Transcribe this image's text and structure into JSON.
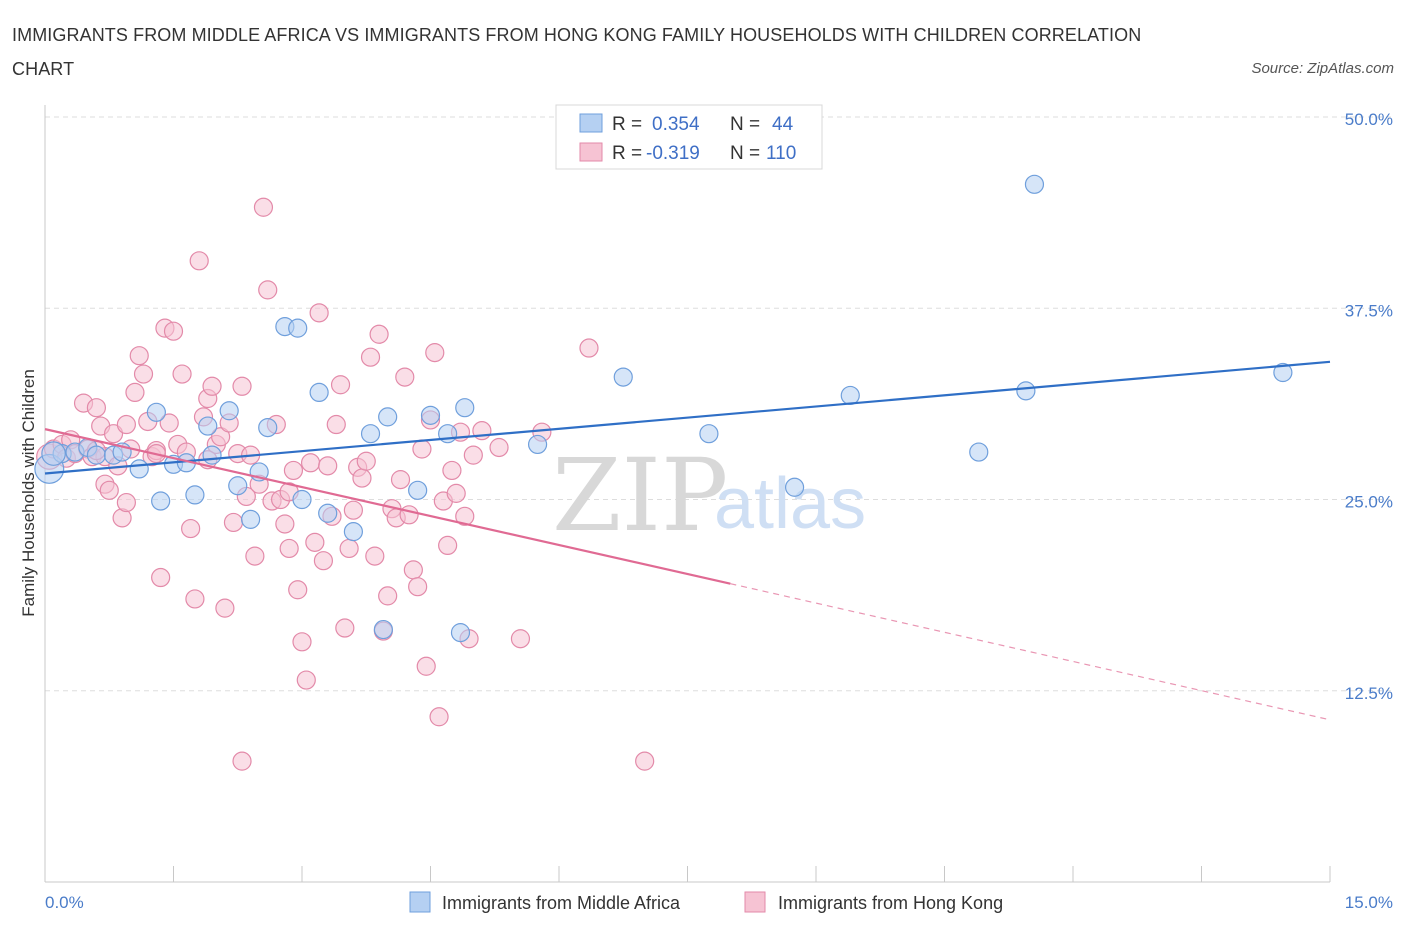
{
  "title_line1": "IMMIGRANTS FROM MIDDLE AFRICA VS IMMIGRANTS FROM HONG KONG FAMILY HOUSEHOLDS WITH CHILDREN CORRELATION",
  "title_line2": "CHART",
  "source": "Source: ZipAtlas.com",
  "watermark": {
    "zip": "ZIP",
    "atlas": "atlas"
  },
  "colors": {
    "blue_fill": "#b5d0f2",
    "blue_stroke": "#6f9fdc",
    "blue_line": "#2f6fc6",
    "pink_fill": "#f6c3d3",
    "pink_stroke": "#e38aa9",
    "pink_line": "#e06a93",
    "grid": "#dddddd",
    "axis_label": "#4a7cc9"
  },
  "stats_legend": {
    "rows": [
      {
        "r_label": "R =",
        "r_value": "0.354",
        "n_label": "N =",
        "n_value": "44",
        "series": "blue"
      },
      {
        "r_label": "R =",
        "r_value": "-0.319",
        "n_label": "N =",
        "n_value": "110",
        "series": "pink"
      }
    ]
  },
  "chart_data": {
    "type": "scatter",
    "title": "IMMIGRANTS FROM MIDDLE AFRICA VS IMMIGRANTS FROM HONG KONG FAMILY HOUSEHOLDS WITH CHILDREN CORRELATION CHART",
    "xlabel": "",
    "ylabel": "Family Households with Children",
    "xlim": [
      0,
      15
    ],
    "ylim": [
      0,
      50
    ],
    "x_tick_labels": {
      "min": "0.0%",
      "max": "15.0%"
    },
    "y_ticks": [
      {
        "value": 50,
        "label": "50.0%"
      },
      {
        "value": 37.5,
        "label": "37.5%"
      },
      {
        "value": 25,
        "label": "25.0%"
      },
      {
        "value": 12.5,
        "label": "12.5%"
      }
    ],
    "x_minor_ticks": [
      0,
      1.5,
      3,
      4.5,
      6,
      7.5,
      9,
      10.5,
      12,
      13.5,
      15
    ],
    "legend": [
      "Immigrants from Middle Africa",
      "Immigrants from Hong Kong"
    ],
    "series": [
      {
        "name": "Immigrants from Middle Africa",
        "color": "blue",
        "R": 0.354,
        "N": 44,
        "trend": {
          "x0": 0,
          "y0": 26.7,
          "x1": 15,
          "y1": 34.0
        },
        "points": [
          [
            0.05,
            27.0,
            1.6
          ],
          [
            0.2,
            28.0,
            1
          ],
          [
            0.35,
            28.1,
            1
          ],
          [
            0.5,
            28.4,
            1
          ],
          [
            0.6,
            27.9,
            1
          ],
          [
            0.8,
            27.9,
            1
          ],
          [
            0.9,
            28.1,
            1
          ],
          [
            1.1,
            27.0,
            1
          ],
          [
            1.3,
            30.7,
            1
          ],
          [
            1.35,
            24.9,
            1
          ],
          [
            1.5,
            27.3,
            1
          ],
          [
            1.65,
            27.4,
            1
          ],
          [
            1.75,
            25.3,
            1
          ],
          [
            1.9,
            29.8,
            1
          ],
          [
            1.95,
            27.9,
            1
          ],
          [
            2.15,
            30.8,
            1
          ],
          [
            2.25,
            25.9,
            1
          ],
          [
            2.4,
            23.7,
            1
          ],
          [
            2.5,
            26.8,
            1
          ],
          [
            2.6,
            29.7,
            1
          ],
          [
            2.8,
            36.3,
            1
          ],
          [
            2.95,
            36.2,
            1
          ],
          [
            3.0,
            25.0,
            1
          ],
          [
            3.2,
            32.0,
            1
          ],
          [
            3.3,
            24.1,
            1
          ],
          [
            3.6,
            22.9,
            1
          ],
          [
            3.8,
            29.3,
            1
          ],
          [
            3.95,
            16.5,
            1
          ],
          [
            4.0,
            30.4,
            1
          ],
          [
            4.35,
            25.6,
            1
          ],
          [
            4.5,
            30.5,
            1
          ],
          [
            4.7,
            29.3,
            1
          ],
          [
            4.85,
            16.3,
            1
          ],
          [
            4.9,
            31.0,
            1
          ],
          [
            5.75,
            28.6,
            1
          ],
          [
            6.75,
            33.0,
            1
          ],
          [
            7.75,
            29.3,
            1
          ],
          [
            8.75,
            25.8,
            1
          ],
          [
            9.4,
            31.8,
            1
          ],
          [
            10.9,
            28.1,
            1
          ],
          [
            11.55,
            45.6,
            1
          ],
          [
            11.45,
            32.1,
            1
          ],
          [
            14.45,
            33.3,
            1
          ],
          [
            0.1,
            28.0,
            1.3
          ]
        ]
      },
      {
        "name": "Immigrants from Hong Kong",
        "color": "pink",
        "R": -0.319,
        "N": 110,
        "trend": {
          "x0": 0,
          "y0": 29.6,
          "x1": 8.0,
          "y1": 19.5
        },
        "trend_dashed": {
          "x0": 8.0,
          "y0": 19.5,
          "x1": 15,
          "y1": 10.6
        },
        "points": [
          [
            0.05,
            27.8,
            1.4
          ],
          [
            0.1,
            28.3,
            1
          ],
          [
            0.2,
            28.6,
            1
          ],
          [
            0.25,
            27.7,
            1
          ],
          [
            0.3,
            28.9,
            1
          ],
          [
            0.35,
            28.0,
            1
          ],
          [
            0.45,
            31.3,
            1
          ],
          [
            0.5,
            28.3,
            1
          ],
          [
            0.55,
            27.8,
            1
          ],
          [
            0.6,
            31.0,
            1
          ],
          [
            0.65,
            29.8,
            1
          ],
          [
            0.7,
            27.8,
            1
          ],
          [
            0.7,
            26.0,
            1
          ],
          [
            0.75,
            25.6,
            1
          ],
          [
            0.8,
            29.3,
            1
          ],
          [
            0.85,
            27.2,
            1
          ],
          [
            0.9,
            23.8,
            1
          ],
          [
            0.95,
            29.9,
            1
          ],
          [
            0.95,
            24.8,
            1
          ],
          [
            1.0,
            28.3,
            1
          ],
          [
            1.05,
            32.0,
            1
          ],
          [
            1.1,
            34.4,
            1
          ],
          [
            1.15,
            33.2,
            1
          ],
          [
            1.2,
            30.1,
            1
          ],
          [
            1.25,
            27.8,
            1
          ],
          [
            1.3,
            28.2,
            1
          ],
          [
            1.35,
            19.9,
            1
          ],
          [
            1.4,
            36.2,
            1
          ],
          [
            1.45,
            30.0,
            1
          ],
          [
            1.5,
            36.0,
            1
          ],
          [
            1.55,
            28.6,
            1
          ],
          [
            1.6,
            33.2,
            1
          ],
          [
            1.65,
            28.1,
            1
          ],
          [
            1.7,
            23.1,
            1
          ],
          [
            1.75,
            18.5,
            1
          ],
          [
            1.8,
            40.6,
            1
          ],
          [
            1.85,
            30.4,
            1
          ],
          [
            1.9,
            31.6,
            1
          ],
          [
            1.95,
            32.4,
            1
          ],
          [
            2.0,
            28.6,
            1
          ],
          [
            2.05,
            29.1,
            1
          ],
          [
            2.1,
            17.9,
            1
          ],
          [
            2.15,
            30.0,
            1
          ],
          [
            2.2,
            23.5,
            1
          ],
          [
            2.25,
            28.0,
            1
          ],
          [
            2.3,
            32.4,
            1
          ],
          [
            2.35,
            25.2,
            1
          ],
          [
            2.4,
            27.9,
            1
          ],
          [
            2.45,
            21.3,
            1
          ],
          [
            2.5,
            26.0,
            1
          ],
          [
            2.55,
            44.1,
            1
          ],
          [
            2.6,
            38.7,
            1
          ],
          [
            2.65,
            24.9,
            1
          ],
          [
            2.7,
            29.9,
            1
          ],
          [
            2.75,
            25.0,
            1
          ],
          [
            2.8,
            23.4,
            1
          ],
          [
            2.85,
            25.5,
            1
          ],
          [
            2.9,
            26.9,
            1
          ],
          [
            2.95,
            19.1,
            1
          ],
          [
            3.0,
            15.7,
            1
          ],
          [
            3.05,
            13.2,
            1
          ],
          [
            3.1,
            27.4,
            1
          ],
          [
            3.15,
            22.2,
            1
          ],
          [
            3.2,
            37.2,
            1
          ],
          [
            3.25,
            21.0,
            1
          ],
          [
            3.3,
            27.2,
            1
          ],
          [
            3.35,
            23.9,
            1
          ],
          [
            3.4,
            29.9,
            1
          ],
          [
            3.45,
            32.5,
            1
          ],
          [
            3.5,
            16.6,
            1
          ],
          [
            3.55,
            21.8,
            1
          ],
          [
            3.6,
            24.3,
            1
          ],
          [
            3.65,
            27.1,
            1
          ],
          [
            3.7,
            26.4,
            1
          ],
          [
            3.75,
            27.5,
            1
          ],
          [
            3.8,
            34.3,
            1
          ],
          [
            3.85,
            21.3,
            1
          ],
          [
            3.9,
            35.8,
            1
          ],
          [
            3.95,
            16.4,
            1
          ],
          [
            4.0,
            18.7,
            1
          ],
          [
            4.05,
            24.4,
            1
          ],
          [
            4.1,
            23.8,
            1
          ],
          [
            4.15,
            26.3,
            1
          ],
          [
            4.2,
            33.0,
            1
          ],
          [
            4.25,
            24.0,
            1
          ],
          [
            4.3,
            20.4,
            1
          ],
          [
            4.35,
            19.3,
            1
          ],
          [
            4.4,
            28.3,
            1
          ],
          [
            4.45,
            14.1,
            1
          ],
          [
            4.5,
            30.2,
            1
          ],
          [
            4.55,
            34.6,
            1
          ],
          [
            4.6,
            10.8,
            1
          ],
          [
            4.65,
            24.9,
            1
          ],
          [
            4.7,
            22.0,
            1
          ],
          [
            4.75,
            26.9,
            1
          ],
          [
            4.8,
            25.4,
            1
          ],
          [
            4.85,
            29.4,
            1
          ],
          [
            4.9,
            23.9,
            1
          ],
          [
            4.95,
            15.9,
            1
          ],
          [
            5.0,
            27.9,
            1
          ],
          [
            5.1,
            29.5,
            1
          ],
          [
            5.3,
            28.4,
            1
          ],
          [
            5.55,
            15.9,
            1
          ],
          [
            5.8,
            29.4,
            1
          ],
          [
            6.35,
            34.9,
            1
          ],
          [
            7.0,
            7.9,
            1
          ],
          [
            2.3,
            7.9,
            1
          ],
          [
            1.3,
            28.0,
            1
          ],
          [
            0.6,
            28.2,
            1
          ],
          [
            1.9,
            27.6,
            1
          ],
          [
            2.85,
            21.8,
            1
          ]
        ]
      }
    ]
  }
}
